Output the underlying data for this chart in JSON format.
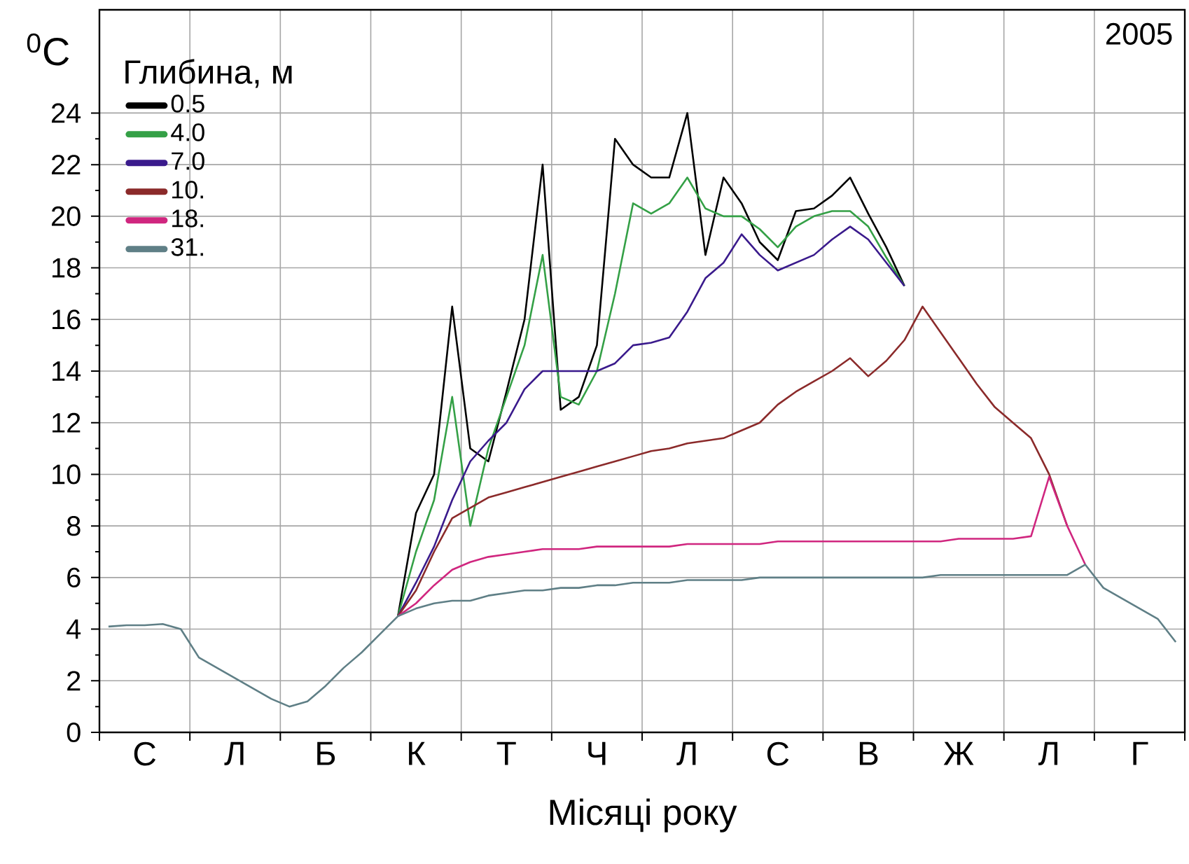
{
  "chart_data": {
    "type": "line",
    "xlabel": "Місяці року",
    "ylabel": "$^{0}$C",
    "legend_title": "Глибина, м",
    "annotations": [
      "2005"
    ],
    "categories": [
      null,
      null,
      "С",
      null,
      null,
      null,
      null,
      "Л",
      null,
      null,
      null,
      null,
      "Б",
      null,
      null,
      null,
      null,
      "К",
      null,
      null,
      null,
      null,
      "Т",
      null,
      null,
      null,
      null,
      "Ч",
      null,
      null,
      null,
      null,
      "Л",
      null,
      null,
      null,
      null,
      "С",
      null,
      null,
      null,
      null,
      "В",
      null,
      null,
      null,
      null,
      "Ж",
      null,
      null,
      null,
      null,
      "Л",
      null,
      null,
      null,
      null,
      "Г",
      null,
      null
    ],
    "ylim": [
      0,
      28
    ],
    "yticks": [
      0,
      2,
      4,
      6,
      8,
      10,
      12,
      14,
      16,
      18,
      20,
      22,
      24
    ],
    "grid": true,
    "legend": "top left",
    "line_style": "solid",
    "series": [
      {
        "name": "0.5",
        "color": "#000000",
        "values": [
          null,
          null,
          null,
          null,
          null,
          null,
          null,
          null,
          null,
          null,
          null,
          null,
          null,
          null,
          null,
          null,
          4.5,
          8.5,
          10,
          16.5,
          11,
          10.5,
          13.2,
          16,
          22,
          12.5,
          13,
          15,
          23.0,
          22,
          21.5,
          21.5,
          24.0,
          18.5,
          21.5,
          20.5,
          19,
          18.3,
          20.2,
          20.3,
          20.8,
          21.5,
          20.1,
          18.8,
          17.3,
          null,
          null,
          null,
          null,
          null,
          null,
          null,
          null,
          null,
          null,
          null,
          null,
          null,
          null,
          null
        ]
      },
      {
        "name": "4.0",
        "color": "#34a046",
        "values": [
          null,
          null,
          null,
          null,
          null,
          null,
          null,
          null,
          null,
          null,
          null,
          null,
          null,
          null,
          null,
          null,
          4.5,
          7,
          9,
          13,
          8,
          11,
          13,
          15,
          18.5,
          13,
          12.7,
          14,
          17,
          20.5,
          20.1,
          20.5,
          21.5,
          20.3,
          20.0,
          20.0,
          19.5,
          18.8,
          19.6,
          20.0,
          20.2,
          20.2,
          19.6,
          18.4,
          17.3,
          null,
          null,
          null,
          null,
          null,
          null,
          null,
          null,
          null,
          null,
          null,
          null,
          null,
          null,
          null
        ]
      },
      {
        "name": "7.0",
        "color": "#3a1a8c",
        "values": [
          null,
          null,
          null,
          null,
          null,
          null,
          null,
          null,
          null,
          null,
          null,
          null,
          null,
          null,
          null,
          null,
          4.5,
          5.8,
          7.2,
          9.0,
          10.5,
          11.3,
          12.0,
          13.3,
          14.0,
          14.0,
          14.0,
          14.0,
          14.3,
          15.0,
          15.1,
          15.3,
          16.3,
          17.6,
          18.2,
          19.3,
          18.5,
          17.9,
          18.2,
          18.5,
          19.1,
          19.6,
          19.1,
          18.2,
          17.3,
          null,
          null,
          null,
          null,
          null,
          null,
          null,
          null,
          null,
          null,
          null,
          null,
          null,
          null,
          null
        ]
      },
      {
        "name": "10.",
        "color": "#8b2a2a",
        "values": [
          null,
          null,
          null,
          null,
          null,
          null,
          null,
          null,
          null,
          null,
          null,
          null,
          null,
          null,
          null,
          null,
          4.5,
          5.5,
          7,
          8.3,
          8.7,
          9.1,
          9.3,
          9.5,
          9.7,
          9.9,
          10.1,
          10.3,
          10.5,
          10.7,
          10.9,
          11.0,
          11.2,
          11.3,
          11.4,
          11.7,
          12.0,
          12.7,
          13.2,
          13.6,
          14.0,
          14.5,
          13.8,
          14.4,
          15.2,
          16.5,
          15.5,
          14.5,
          13.5,
          12.6,
          12.0,
          11.4,
          10.0,
          8.0,
          null,
          null,
          null,
          null,
          null,
          null
        ]
      },
      {
        "name": "18.",
        "color": "#d0267f",
        "values": [
          null,
          null,
          null,
          null,
          null,
          null,
          null,
          null,
          null,
          null,
          null,
          null,
          null,
          null,
          null,
          null,
          4.5,
          5.0,
          5.7,
          6.3,
          6.6,
          6.8,
          6.9,
          7.0,
          7.1,
          7.1,
          7.1,
          7.2,
          7.2,
          7.2,
          7.2,
          7.2,
          7.3,
          7.3,
          7.3,
          7.3,
          7.3,
          7.4,
          7.4,
          7.4,
          7.4,
          7.4,
          7.4,
          7.4,
          7.4,
          7.4,
          7.4,
          7.5,
          7.5,
          7.5,
          7.5,
          7.6,
          9.9,
          8.0,
          6.5,
          null,
          null,
          null,
          null,
          null
        ]
      },
      {
        "name": "31.",
        "color": "#5f7f86",
        "values": [
          4.1,
          4.15,
          4.15,
          4.2,
          4.0,
          2.9,
          2.5,
          2.1,
          1.7,
          1.3,
          1.0,
          1.2,
          1.8,
          2.5,
          3.1,
          3.8,
          4.5,
          4.8,
          5.0,
          5.1,
          5.1,
          5.3,
          5.4,
          5.5,
          5.5,
          5.6,
          5.6,
          5.7,
          5.7,
          5.8,
          5.8,
          5.8,
          5.9,
          5.9,
          5.9,
          5.9,
          6.0,
          6.0,
          6.0,
          6.0,
          6.0,
          6.0,
          6.0,
          6.0,
          6.0,
          6.0,
          6.1,
          6.1,
          6.1,
          6.1,
          6.1,
          6.1,
          6.1,
          6.1,
          6.5,
          5.6,
          5.2,
          4.8,
          4.4,
          3.5
        ]
      }
    ]
  }
}
